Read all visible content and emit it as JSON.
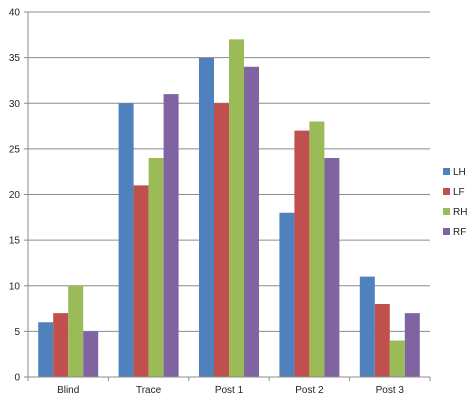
{
  "chart_data": {
    "type": "bar",
    "title": "",
    "xlabel": "",
    "ylabel": "",
    "categories": [
      "Blind",
      "Trace",
      "Post 1",
      "Post 2",
      "Post 3"
    ],
    "series": [
      {
        "name": "LH",
        "color": "#4F81BD",
        "values": [
          6,
          30,
          35,
          18,
          11
        ]
      },
      {
        "name": "LF",
        "color": "#C0504D",
        "values": [
          7,
          21,
          30,
          27,
          8
        ]
      },
      {
        "name": "RH",
        "color": "#9BBB59",
        "values": [
          10,
          24,
          37,
          28,
          4
        ]
      },
      {
        "name": "RF",
        "color": "#8064A2",
        "values": [
          5,
          31,
          34,
          24,
          7
        ]
      }
    ],
    "ylim": [
      0,
      40
    ],
    "yticks": [
      0,
      5,
      10,
      15,
      20,
      25,
      30,
      35,
      40
    ],
    "grid": true,
    "legend": "right"
  }
}
